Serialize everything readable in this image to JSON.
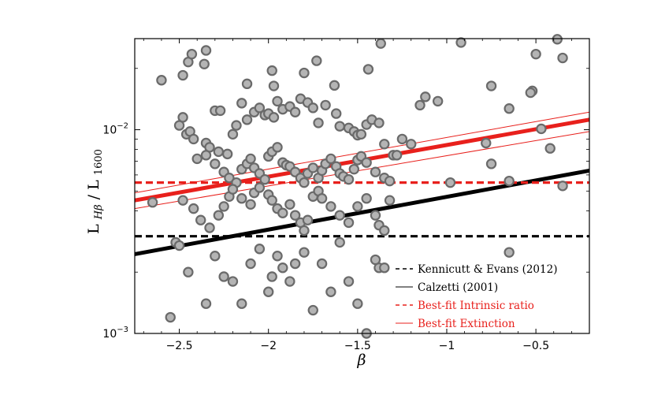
{
  "chart_data": {
    "type": "scatter",
    "title": "",
    "xlabel": "β",
    "ylabel_main": "L",
    "ylabel_sub1": "Hβ",
    "ylabel_mid": " / L",
    "ylabel_sub2": "1600",
    "xlim": [
      -2.75,
      -0.2
    ],
    "ylim": [
      0.001,
      0.028
    ],
    "y_scale": "log",
    "grid": false,
    "legend_position": "lower-right",
    "x_ticks": [
      -2.5,
      -2,
      -1.5,
      -1,
      -0.5
    ],
    "x_tick_labels": [
      "−2.5",
      "−2",
      "−1.5",
      "−1",
      "−0.5"
    ],
    "y_ticks": [
      0.001,
      0.01
    ],
    "y_tick_base": [
      "10",
      "10"
    ],
    "y_tick_exp": [
      "−3",
      "−2"
    ],
    "lines": [
      {
        "name": "Kennicutt & Evans (2012)",
        "style": "dashed",
        "color": "#000000",
        "x": [
          -2.75,
          -0.2
        ],
        "y": [
          0.003,
          0.003
        ]
      },
      {
        "name": "Calzetti (2001)",
        "style": "solid-thick",
        "color": "#000000",
        "x": [
          -2.75,
          -0.2
        ],
        "y": [
          0.00245,
          0.0063
        ]
      },
      {
        "name": "Best-fit Intrinsic ratio",
        "style": "dashed",
        "color": "#e8201c",
        "x": [
          -2.75,
          -0.2
        ],
        "y": [
          0.0055,
          0.0055
        ]
      },
      {
        "name": "Best-fit Extinction",
        "style": "solid-thick",
        "color": "#e8201c",
        "x": [
          -2.75,
          -0.2
        ],
        "y": [
          0.0045,
          0.0112
        ]
      },
      {
        "name": "",
        "style": "solid-thin",
        "color": "#e8201c",
        "x": [
          -2.75,
          -0.2
        ],
        "y": [
          0.0049,
          0.0122
        ]
      },
      {
        "name": "",
        "style": "solid-thin",
        "color": "#e8201c",
        "x": [
          -2.75,
          -0.2
        ],
        "y": [
          0.0041,
          0.0098
        ]
      }
    ],
    "legend": [
      {
        "label": "Kennicutt & Evans (2012)",
        "style": "dashed",
        "color": "#000000"
      },
      {
        "label": "Calzetti (2001)",
        "style": "solid-thin",
        "color": "#000000"
      },
      {
        "label": "Best-fit Intrinsic ratio",
        "style": "dashed",
        "color": "#e8201c"
      },
      {
        "label": "Best-fit Extinction",
        "style": "solid-thin",
        "color": "#e8201c"
      }
    ],
    "series": [
      {
        "x": [
          -2.6,
          -2.48,
          -2.45,
          -2.43,
          -2.36,
          -2.35,
          -2.3,
          -2.27,
          -2.15,
          -2.12,
          -1.98,
          -1.97,
          -1.8,
          -1.73,
          -1.63,
          -1.44,
          -1.37,
          -0.92,
          -0.75,
          -0.52,
          -0.5,
          -0.38,
          -0.35
        ],
        "y": [
          0.0175,
          0.0185,
          0.0215,
          0.0235,
          0.021,
          0.0245,
          0.0124,
          0.0124,
          0.0135,
          0.0168,
          0.0195,
          0.0164,
          0.019,
          0.0218,
          0.0165,
          0.0198,
          0.0265,
          0.0268,
          0.0164,
          0.0155,
          0.0235,
          0.0278,
          0.0225
        ]
      },
      {
        "x": [
          -2.5,
          -2.48,
          -2.46,
          -2.44,
          -2.42,
          -2.35,
          -2.33,
          -2.28,
          -2.23,
          -2.2,
          -2.18,
          -2.12,
          -2.08,
          -2.05,
          -2.02,
          -2.0,
          -1.97,
          -1.95,
          -1.92,
          -1.88,
          -1.85,
          -1.82,
          -1.78,
          -1.75,
          -1.72,
          -1.68,
          -1.62,
          -1.6,
          -1.55,
          -1.52,
          -1.5,
          -1.48,
          -1.45,
          -1.42,
          -1.38,
          -1.35,
          -1.3,
          -1.25,
          -1.2,
          -1.15,
          -1.12,
          -1.05,
          -0.78,
          -0.65,
          -0.53,
          -0.47,
          -0.42
        ],
        "y": [
          0.0105,
          0.0115,
          0.0095,
          0.0098,
          0.009,
          0.0086,
          0.0082,
          0.0078,
          0.0076,
          0.0095,
          0.0105,
          0.0112,
          0.0122,
          0.0128,
          0.0118,
          0.012,
          0.0115,
          0.0138,
          0.0126,
          0.013,
          0.0122,
          0.0142,
          0.0136,
          0.0128,
          0.0108,
          0.0132,
          0.012,
          0.0104,
          0.0102,
          0.0098,
          0.0094,
          0.0095,
          0.0106,
          0.0112,
          0.0108,
          0.0085,
          0.0075,
          0.009,
          0.0085,
          0.0132,
          0.0145,
          0.0138,
          0.0086,
          0.0127,
          0.0152,
          0.0101,
          0.0081
        ]
      },
      {
        "x": [
          -2.4,
          -2.35,
          -2.3,
          -2.25,
          -2.22,
          -2.18,
          -2.15,
          -2.12,
          -2.1,
          -2.08,
          -2.05,
          -2.02,
          -2.0,
          -1.98,
          -1.95,
          -1.92,
          -1.9,
          -1.88,
          -1.85,
          -1.82,
          -1.8,
          -1.78,
          -1.75,
          -1.72,
          -1.7,
          -1.68,
          -1.65,
          -1.62,
          -1.6,
          -1.58,
          -1.55,
          -1.52,
          -1.5,
          -1.48,
          -1.45,
          -1.4,
          -1.35,
          -1.32,
          -1.28,
          -0.98,
          -0.75,
          -0.65,
          -0.35
        ],
        "y": [
          0.0072,
          0.0075,
          0.0068,
          0.0062,
          0.0058,
          0.0055,
          0.0064,
          0.0068,
          0.0072,
          0.0065,
          0.0061,
          0.0057,
          0.0074,
          0.0078,
          0.0082,
          0.0069,
          0.0067,
          0.0066,
          0.0062,
          0.0058,
          0.0055,
          0.0061,
          0.0065,
          0.0058,
          0.0063,
          0.0068,
          0.0072,
          0.0066,
          0.0061,
          0.0059,
          0.0057,
          0.0064,
          0.0071,
          0.0074,
          0.0069,
          0.0062,
          0.0058,
          0.0056,
          0.0075,
          0.0055,
          0.0068,
          0.0056,
          0.0053
        ]
      },
      {
        "x": [
          -2.65,
          -2.52,
          -2.48,
          -2.42,
          -2.38,
          -2.33,
          -2.28,
          -2.25,
          -2.22,
          -2.2,
          -2.15,
          -2.1,
          -2.08,
          -2.05,
          -2.0,
          -1.98,
          -1.95,
          -1.92,
          -1.88,
          -1.85,
          -1.82,
          -1.8,
          -1.78,
          -1.75,
          -1.72,
          -1.7,
          -1.65,
          -1.6,
          -1.55,
          -1.5,
          -1.45,
          -1.4,
          -1.38,
          -1.35,
          -1.32
        ],
        "y": [
          0.0044,
          0.0028,
          0.0045,
          0.0041,
          0.0036,
          0.0033,
          0.0038,
          0.0042,
          0.0047,
          0.0051,
          0.0046,
          0.0043,
          0.0049,
          0.0052,
          0.0048,
          0.0045,
          0.0041,
          0.0039,
          0.0043,
          0.0038,
          0.0035,
          0.0032,
          0.0036,
          0.0047,
          0.005,
          0.0046,
          0.0042,
          0.0038,
          0.0035,
          0.0042,
          0.0046,
          0.0038,
          0.0034,
          0.0032,
          0.0045
        ]
      },
      {
        "x": [
          -2.55,
          -2.5,
          -2.45,
          -2.35,
          -2.3,
          -2.25,
          -2.2,
          -2.15,
          -2.1,
          -2.05,
          -2.0,
          -1.98,
          -1.95,
          -1.92,
          -1.88,
          -1.85,
          -1.8,
          -1.75,
          -1.7,
          -1.65,
          -1.6,
          -1.55,
          -1.5,
          -1.45,
          -1.4,
          -1.38,
          -1.35,
          -0.65
        ],
        "y": [
          0.0012,
          0.0027,
          0.002,
          0.0014,
          0.0024,
          0.0019,
          0.0018,
          0.0014,
          0.0022,
          0.0026,
          0.0016,
          0.0019,
          0.0024,
          0.0021,
          0.0018,
          0.0022,
          0.0025,
          0.0013,
          0.0022,
          0.0016,
          0.0028,
          0.0018,
          0.0014,
          0.001,
          0.0023,
          0.0021,
          0.0021,
          0.0025
        ]
      }
    ]
  }
}
